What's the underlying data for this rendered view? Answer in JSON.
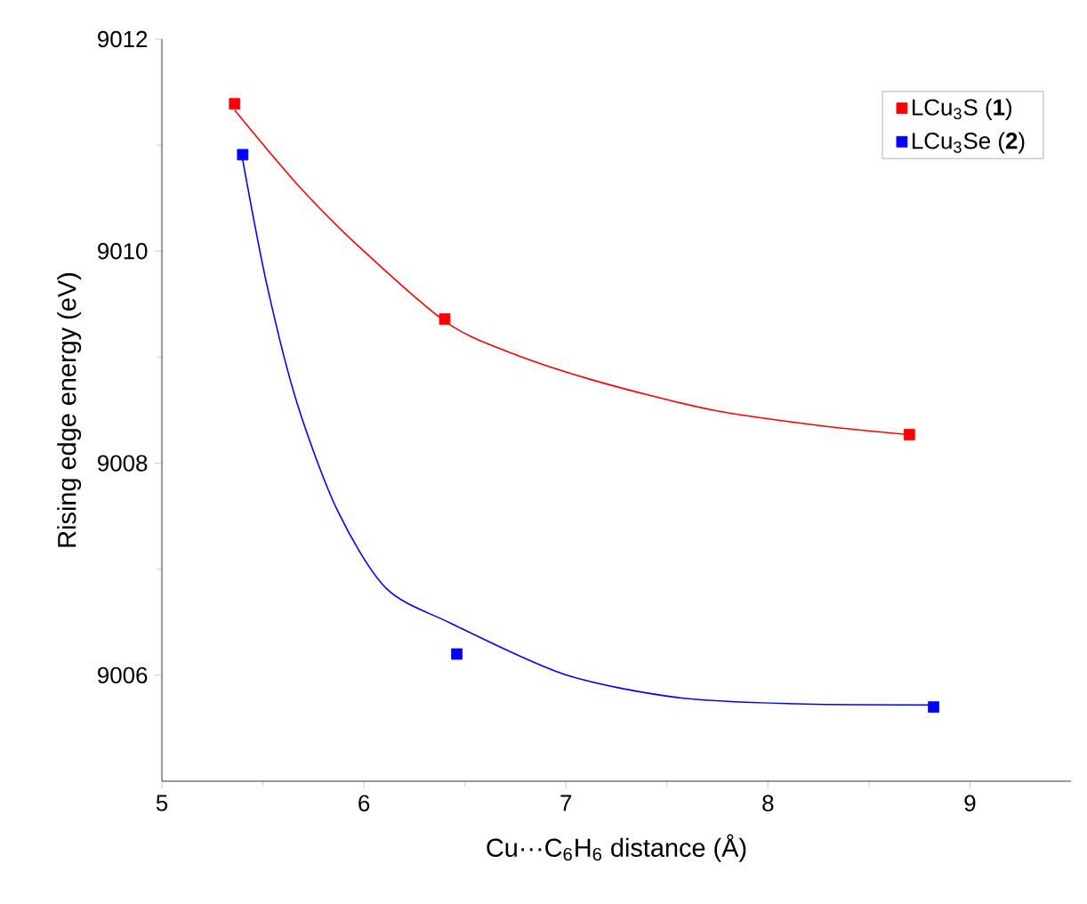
{
  "chart_data": {
    "type": "scatter",
    "xlabel": "Cu···C$_{6}$H$_{6}$ distance (Å)",
    "ylabel": "Rising edge energy (eV)",
    "xlim": [
      5,
      9.5
    ],
    "xticks": [
      5,
      6,
      7,
      8,
      9
    ],
    "ylim": [
      9005,
      9012
    ],
    "yticks": [
      9006,
      9008,
      9010,
      9012
    ],
    "grid": false,
    "legend": "top right",
    "marker": "square",
    "series": [
      {
        "name": "LCu$_{3}$S (**1**)",
        "color": "#ff0000",
        "x": [
          5.36,
          6.4,
          8.7
        ],
        "values": [
          9011.39,
          9009.36,
          9008.27
        ]
      },
      {
        "name": "LCu$_{3}$Se (**2**)",
        "color": "#0000ff",
        "x": [
          5.4,
          6.46,
          8.82
        ],
        "values": [
          9010.91,
          9006.2,
          9005.7
        ]
      },
      {
        "type": "line",
        "marker": "none",
        "color": "#ff0000",
        "x": [
          5.36,
          5.67,
          5.96,
          6.4,
          6.7,
          7.14,
          7.73,
          8.32,
          8.7
        ],
        "values": [
          9011.33,
          9010.63,
          9010.07,
          9009.34,
          9009.06,
          9008.78,
          9008.5,
          9008.34,
          9008.27
        ]
      },
      {
        "type": "line",
        "marker": "none",
        "color": "#0000ff",
        "x": [
          5.4,
          5.52,
          5.67,
          5.87,
          6.11,
          6.43,
          6.99,
          7.55,
          8.14,
          8.82
        ],
        "values": [
          9010.86,
          9009.68,
          9008.56,
          9007.55,
          9006.82,
          9006.49,
          9006.01,
          9005.79,
          9005.73,
          9005.72
        ]
      }
    ]
  }
}
